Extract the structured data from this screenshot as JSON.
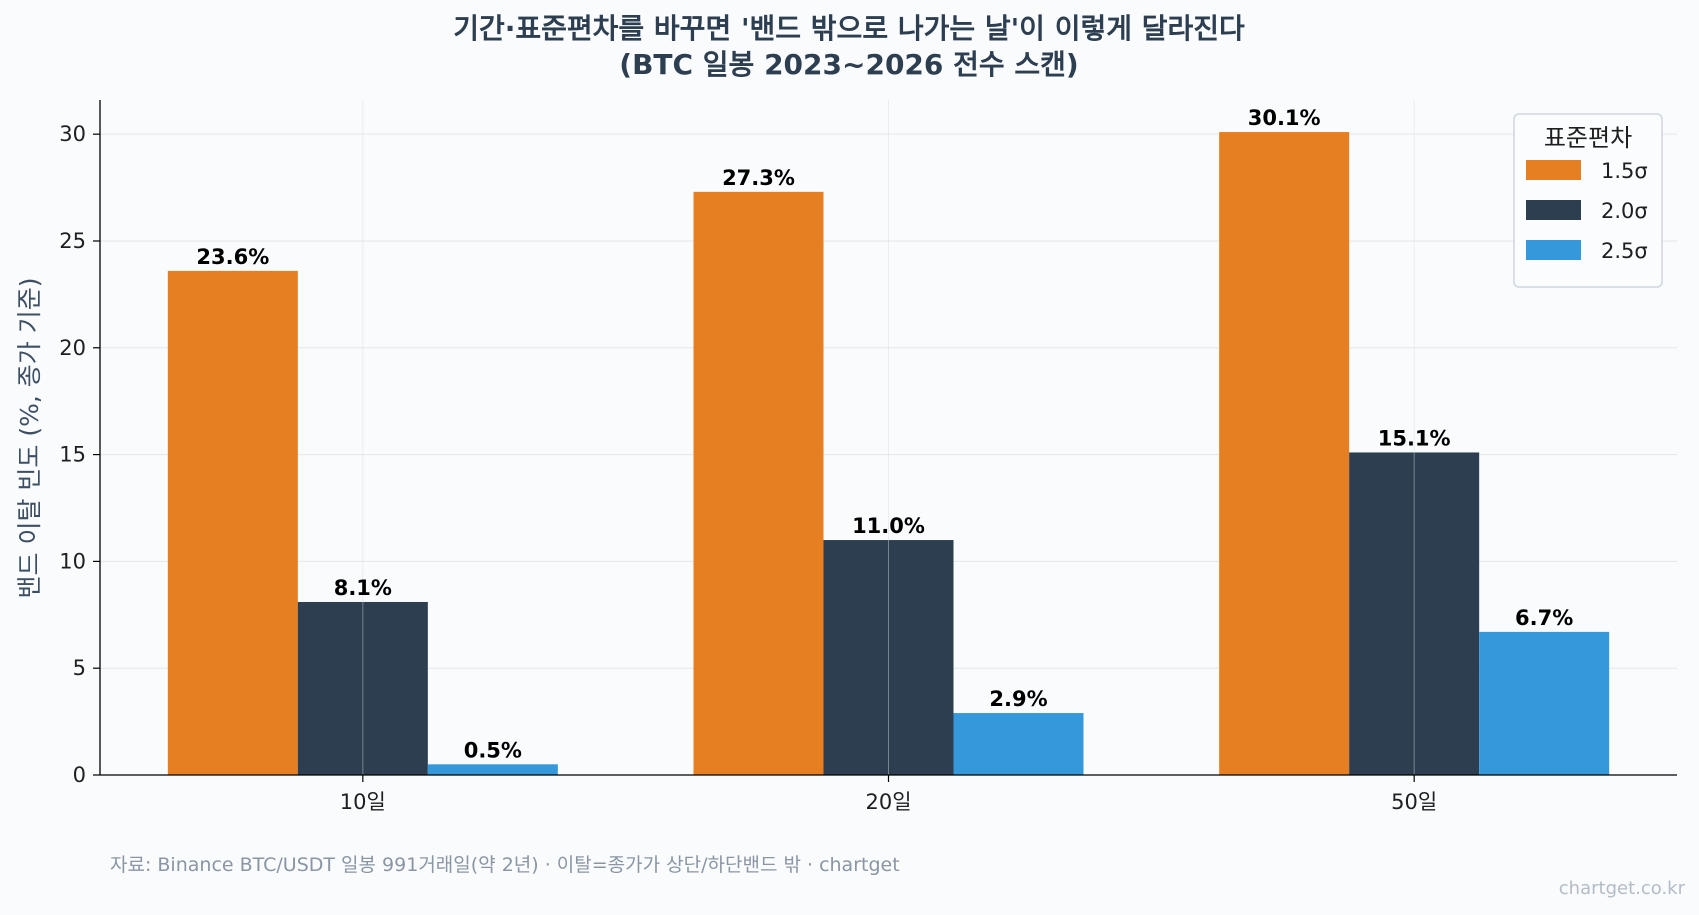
{
  "chart_data": {
    "type": "bar",
    "title": "기간·표준편차를 바꾸면 '밴드 밖으로 나가는 날'이 이렇게 달라진다",
    "subtitle": "(BTC 일봉 2023~2026 전수 스캔)",
    "xlabel": "",
    "ylabel": "밴드 이탈 빈도 (%, 종가 기준)",
    "categories": [
      "10일",
      "20일",
      "50일"
    ],
    "ylim": [
      0,
      31.6
    ],
    "yticks": [
      0,
      5,
      10,
      15,
      20,
      25,
      30
    ],
    "grid": true,
    "legend_title": "표준편차",
    "legend_position": "top-right",
    "series": [
      {
        "name": "1.5σ",
        "color": "#e67e22",
        "values": [
          23.6,
          27.3,
          30.1
        ],
        "labels": [
          "23.6%",
          "27.3%",
          "30.1%"
        ]
      },
      {
        "name": "2.0σ",
        "color": "#2c3e50",
        "values": [
          8.1,
          11.0,
          15.1
        ],
        "labels": [
          "8.1%",
          "11.0%",
          "15.1%"
        ]
      },
      {
        "name": "2.5σ",
        "color": "#3498db",
        "values": [
          0.5,
          2.9,
          6.7
        ],
        "labels": [
          "0.5%",
          "2.9%",
          "6.7%"
        ]
      }
    ]
  },
  "footer": {
    "source": "자료: Binance BTC/USDT 일봉 991거래일(약 2년) · 이탈=종가가 상단/하단밴드 밖 · chartget",
    "watermark": "chartget.co.kr"
  }
}
